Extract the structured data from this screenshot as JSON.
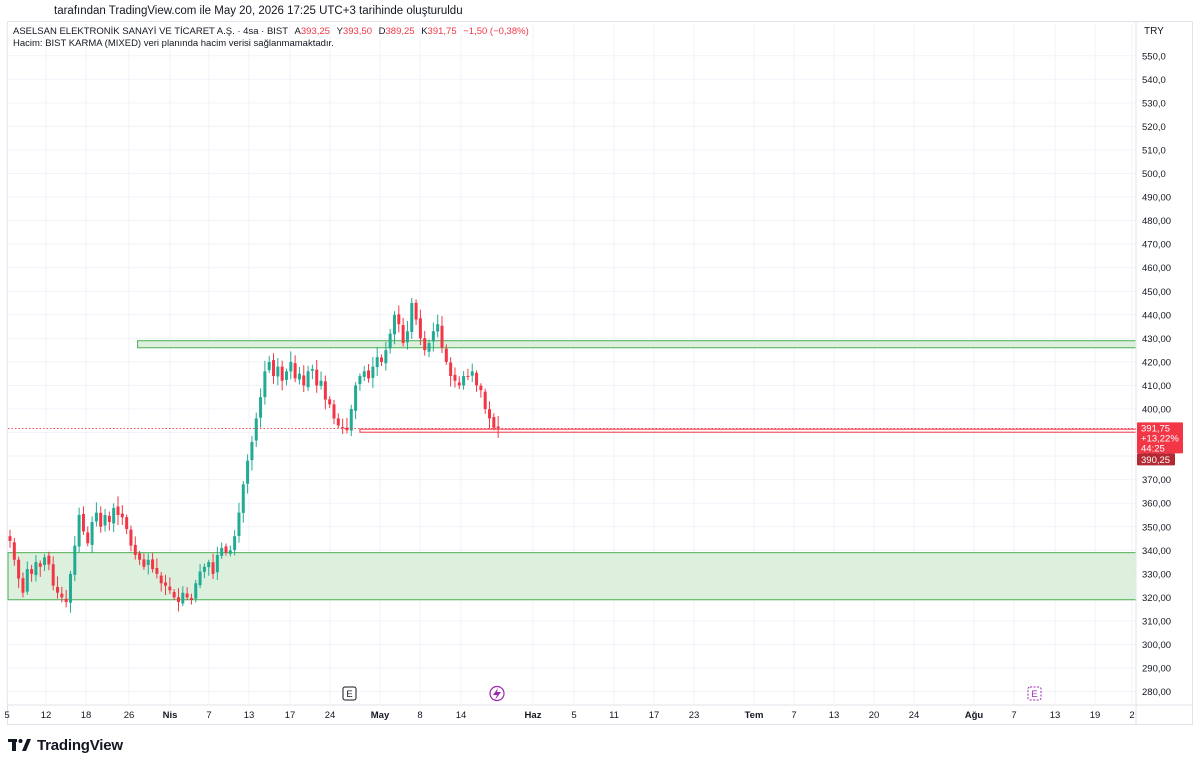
{
  "caption": "tarafından TradingView.com ile May 20, 2026 17:25 UTC+3 tarihinde oluşturuldu",
  "legend": {
    "symbol": "ASELSAN ELEKTRONİK SANAYİ VE TİCARET A.Ş. · 4sa · BIST",
    "open_label": "A",
    "open": "393,25",
    "high_label": "Y",
    "high": "393,50",
    "low_label": "D",
    "low": "389,25",
    "close_label": "K",
    "close": "391,75",
    "change": "−1,50 (−0,38%)",
    "volume_note": "Hacim: BIST KARMA (MIXED) veri planında hacim verisi sağlanmamaktadır."
  },
  "currency": "TRY",
  "price_badge": {
    "price": "391,75",
    "percent": "+13,22%",
    "countdown": "44:25",
    "line_price": "390,25"
  },
  "events": {
    "earnings_1": "E",
    "earnings_2": "E",
    "dividend_icon": "lightning-icon"
  },
  "brand": {
    "name": "TradingView",
    "logo": "tradingview-logo-icon"
  },
  "colors": {
    "up": "#22ab94",
    "down": "#f23645",
    "zone_fill": "#d8eed9",
    "zone_border": "#4caf50",
    "line": "#f23645",
    "earnings": "#9c27b0"
  },
  "chart_data": {
    "type": "candlestick",
    "y_axis": {
      "min": 275,
      "max": 555,
      "ticks": [
        "550,0",
        "540,0",
        "530,0",
        "520,0",
        "510,0",
        "500,0",
        "490,00",
        "480,00",
        "470,00",
        "460,00",
        "450,00",
        "440,00",
        "430,00",
        "420,00",
        "410,00",
        "400,00",
        "390,00",
        "380,00",
        "370,00",
        "360,00",
        "350,00",
        "340,00",
        "330,00",
        "320,00",
        "310,00",
        "300,00",
        "290,00",
        "280,00"
      ]
    },
    "x_axis": {
      "ticks": [
        {
          "label": "5",
          "month": false
        },
        {
          "label": "12",
          "month": false
        },
        {
          "label": "18",
          "month": false
        },
        {
          "label": "26",
          "month": false
        },
        {
          "label": "Nis",
          "month": true
        },
        {
          "label": "7",
          "month": false
        },
        {
          "label": "13",
          "month": false
        },
        {
          "label": "17",
          "month": false
        },
        {
          "label": "24",
          "month": false
        },
        {
          "label": "May",
          "month": true
        },
        {
          "label": "8",
          "month": false
        },
        {
          "label": "14",
          "month": false
        },
        {
          "label": "Haz",
          "month": true
        },
        {
          "label": "5",
          "month": false
        },
        {
          "label": "11",
          "month": false
        },
        {
          "label": "17",
          "month": false
        },
        {
          "label": "23",
          "month": false
        },
        {
          "label": "Tem",
          "month": true
        },
        {
          "label": "7",
          "month": false
        },
        {
          "label": "13",
          "month": false
        },
        {
          "label": "20",
          "month": false
        },
        {
          "label": "24",
          "month": false
        },
        {
          "label": "Ağu",
          "month": true
        },
        {
          "label": "7",
          "month": false
        },
        {
          "label": "13",
          "month": false
        },
        {
          "label": "19",
          "month": false
        },
        {
          "label": "2",
          "month": false
        }
      ]
    },
    "zones": [
      {
        "name": "resistance",
        "from": 426,
        "to": 429,
        "start_index": 30
      },
      {
        "name": "support",
        "from": 319,
        "to": 339,
        "start_index": 0
      }
    ],
    "hline": {
      "value": 391,
      "start_index": 81
    },
    "last_price": 391.75,
    "closes": [
      344,
      336,
      328,
      322,
      332,
      330,
      335,
      333,
      337,
      334,
      325,
      322,
      320,
      318,
      330,
      342,
      355,
      348,
      343,
      352,
      356,
      350,
      355,
      352,
      358,
      355,
      354,
      349,
      342,
      338,
      336,
      333,
      336,
      332,
      330,
      326,
      325,
      323,
      320,
      318,
      322,
      320,
      319,
      326,
      331,
      333,
      335,
      330,
      338,
      341,
      339,
      340,
      346,
      356,
      368,
      378,
      386,
      396,
      405,
      416,
      420,
      414,
      418,
      412,
      416,
      420,
      413,
      415,
      410,
      416,
      417,
      410,
      412,
      404,
      402,
      396,
      393,
      392,
      391,
      400,
      410,
      414,
      416,
      413,
      418,
      422,
      420,
      425,
      432,
      440,
      436,
      428,
      433,
      445,
      438,
      430,
      425,
      428,
      433,
      436,
      426,
      420,
      414,
      412,
      410,
      414,
      414,
      416,
      410,
      408,
      400,
      396,
      392,
      391.75
    ]
  }
}
